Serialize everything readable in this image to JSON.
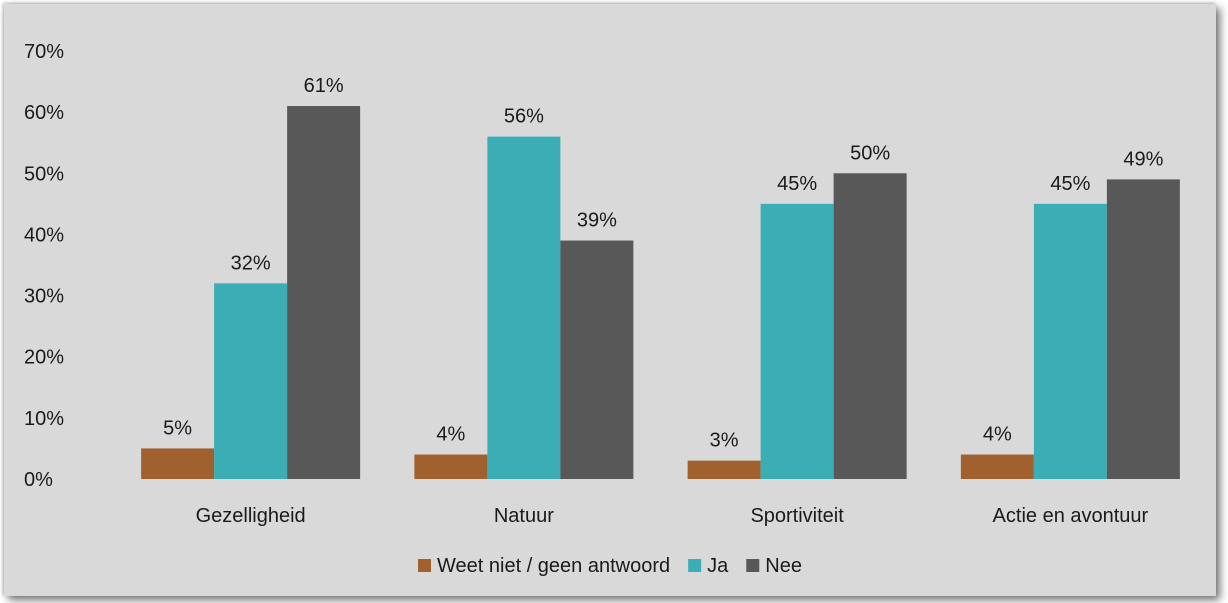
{
  "chart_data": {
    "type": "bar",
    "categories": [
      "Gezelligheid",
      "Natuur",
      "Sportiviteit",
      "Actie en avontuur"
    ],
    "series": [
      {
        "name": "Weet niet / geen antwoord",
        "color": "#a0612e",
        "values": [
          5,
          4,
          3,
          4
        ],
        "labels": [
          "5%",
          "4%",
          "3%",
          "4%"
        ]
      },
      {
        "name": "Ja",
        "color": "#3aaeb4",
        "values": [
          32,
          56,
          45,
          45
        ],
        "labels": [
          "32%",
          "56%",
          "45%",
          "45%"
        ]
      },
      {
        "name": "Nee",
        "color": "#585858",
        "values": [
          61,
          39,
          50,
          49
        ],
        "labels": [
          "61%",
          "39%",
          "50%",
          "49%"
        ]
      }
    ],
    "yticks": [
      "0%",
      "10%",
      "20%",
      "30%",
      "40%",
      "50%",
      "60%",
      "70%"
    ],
    "ylim": [
      0,
      70
    ],
    "unit": "%",
    "grid": false,
    "legend_position": "bottom"
  }
}
